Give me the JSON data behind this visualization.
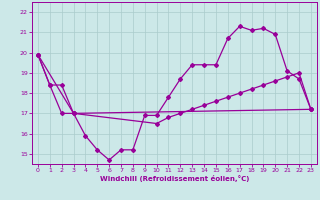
{
  "xlabel": "Windchill (Refroidissement éolien,°C)",
  "bg_color": "#cce8e8",
  "line_color": "#990099",
  "grid_color": "#aacccc",
  "xlim": [
    -0.5,
    23.5
  ],
  "ylim": [
    14.5,
    22.5
  ],
  "xticks": [
    0,
    1,
    2,
    3,
    4,
    5,
    6,
    7,
    8,
    9,
    10,
    11,
    12,
    13,
    14,
    15,
    16,
    17,
    18,
    19,
    20,
    21,
    22,
    23
  ],
  "yticks": [
    15,
    16,
    17,
    18,
    19,
    20,
    21,
    22
  ],
  "line1_x": [
    0,
    1,
    2,
    3,
    4,
    5,
    6,
    7,
    8,
    9,
    10,
    11,
    12,
    13,
    14,
    15,
    16,
    17,
    18,
    19,
    20,
    21,
    22,
    23
  ],
  "line1_y": [
    19.9,
    18.4,
    18.4,
    17.0,
    15.9,
    15.2,
    14.7,
    15.2,
    15.2,
    16.9,
    16.9,
    17.8,
    18.7,
    19.4,
    19.4,
    19.4,
    20.7,
    21.3,
    21.1,
    21.2,
    20.9,
    19.1,
    18.7,
    17.2
  ],
  "line2_x": [
    0,
    1,
    2,
    3,
    23
  ],
  "line2_y": [
    19.9,
    18.4,
    17.0,
    17.0,
    17.2
  ],
  "line3_x": [
    0,
    3,
    10,
    11,
    12,
    13,
    14,
    15,
    16,
    17,
    18,
    19,
    20,
    21,
    22,
    23
  ],
  "line3_y": [
    19.9,
    17.0,
    16.5,
    16.8,
    17.0,
    17.2,
    17.4,
    17.6,
    17.8,
    18.0,
    18.2,
    18.4,
    18.6,
    18.8,
    19.0,
    17.2
  ]
}
